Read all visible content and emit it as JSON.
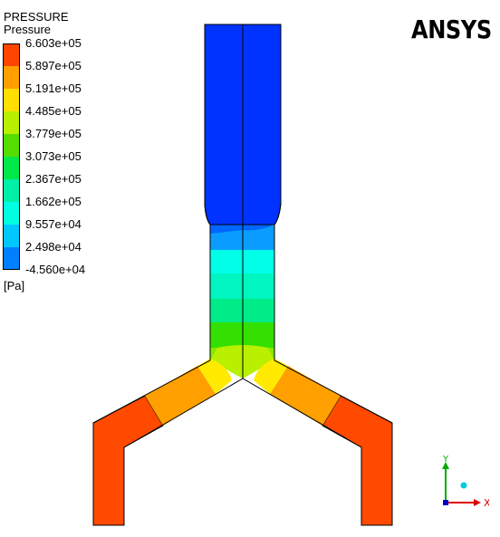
{
  "legend": {
    "title": "PRESSURE",
    "variable": "Pressure",
    "unit": "[Pa]",
    "levels": [
      {
        "label": "6.603e+05",
        "color": "#ff4500"
      },
      {
        "label": "5.897e+05",
        "color": "#ff9f00"
      },
      {
        "label": "5.191e+05",
        "color": "#ffdf00"
      },
      {
        "label": "4.485e+05",
        "color": "#b8f000"
      },
      {
        "label": "3.779e+05",
        "color": "#55dd00"
      },
      {
        "label": "3.073e+05",
        "color": "#00e84a"
      },
      {
        "label": "2.367e+05",
        "color": "#00f0a8"
      },
      {
        "label": "1.662e+05",
        "color": "#00ffe0"
      },
      {
        "label": "9.557e+04",
        "color": "#00c8ff"
      },
      {
        "label": "2.498e+04",
        "color": "#0080ff"
      },
      {
        "label": "-4.560e+04",
        "color": "#0033ff"
      }
    ]
  },
  "brand": "ANSYS",
  "colors": {
    "outlet": "#ff4a00",
    "outlet_mid": "#ffa000",
    "junction": "#ffe800",
    "junction_green": "#a8f000",
    "inlet": "#0033ff"
  },
  "axes": {
    "x": "X",
    "y": "Y"
  }
}
